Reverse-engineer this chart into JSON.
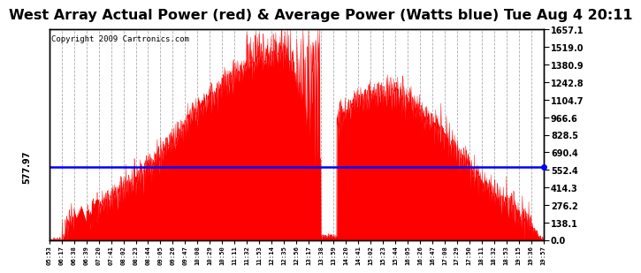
{
  "title": "West Array Actual Power (red) & Average Power (Watts blue) Tue Aug 4 20:11",
  "copyright": "Copyright 2009 Cartronics.com",
  "avg_power": 577.97,
  "ymax": 1657.1,
  "ymin": 0.0,
  "yticks": [
    0.0,
    138.1,
    276.2,
    414.3,
    552.4,
    690.4,
    828.5,
    966.6,
    1104.7,
    1242.8,
    1380.9,
    1519.0,
    1657.1
  ],
  "fill_color": "#FF0000",
  "line_color": "#0000FF",
  "bg_color": "#FFFFFF",
  "grid_color": "#999999",
  "title_fontsize": 11.5,
  "copyright_fontsize": 6.5,
  "xtick_labels": [
    "05:53",
    "06:17",
    "06:38",
    "06:39",
    "07:20",
    "07:41",
    "08:02",
    "08:23",
    "08:44",
    "09:05",
    "09:26",
    "09:47",
    "10:08",
    "10:29",
    "10:50",
    "11:11",
    "11:32",
    "11:53",
    "12:14",
    "12:35",
    "12:56",
    "13:17",
    "13:38",
    "13:59",
    "14:20",
    "14:41",
    "15:02",
    "15:23",
    "15:44",
    "16:05",
    "16:26",
    "16:47",
    "17:08",
    "17:29",
    "17:50",
    "18:11",
    "18:32",
    "18:53",
    "19:15",
    "19:36",
    "19:57"
  ]
}
